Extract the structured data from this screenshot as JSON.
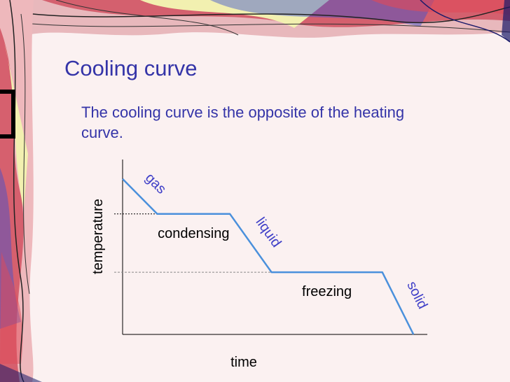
{
  "slide": {
    "title": "Cooling curve",
    "subtitle": "The cooling curve is the opposite of the heating curve."
  },
  "colors": {
    "text": "#3434a8",
    "curve": "#4a90dc",
    "phase_label": "#4040c8",
    "axis": "#000000"
  },
  "chart_data": {
    "type": "line",
    "xlabel": "time",
    "ylabel": "temperature",
    "series": [
      {
        "x": [
          0,
          1,
          3.1,
          4.3,
          7.5,
          8.4
        ],
        "y": [
          4,
          3.1,
          3.1,
          1.6,
          1.6,
          0
        ]
      }
    ],
    "xlim": [
      0,
      8.8
    ],
    "ylim": [
      0,
      4.5
    ],
    "reference_lines": [
      3.1,
      1.6
    ],
    "annotations": [
      {
        "text": "gas",
        "kind": "phase"
      },
      {
        "text": "condensing",
        "kind": "transition"
      },
      {
        "text": "liquid",
        "kind": "phase"
      },
      {
        "text": "freezing",
        "kind": "transition"
      },
      {
        "text": "solid",
        "kind": "phase"
      }
    ]
  }
}
